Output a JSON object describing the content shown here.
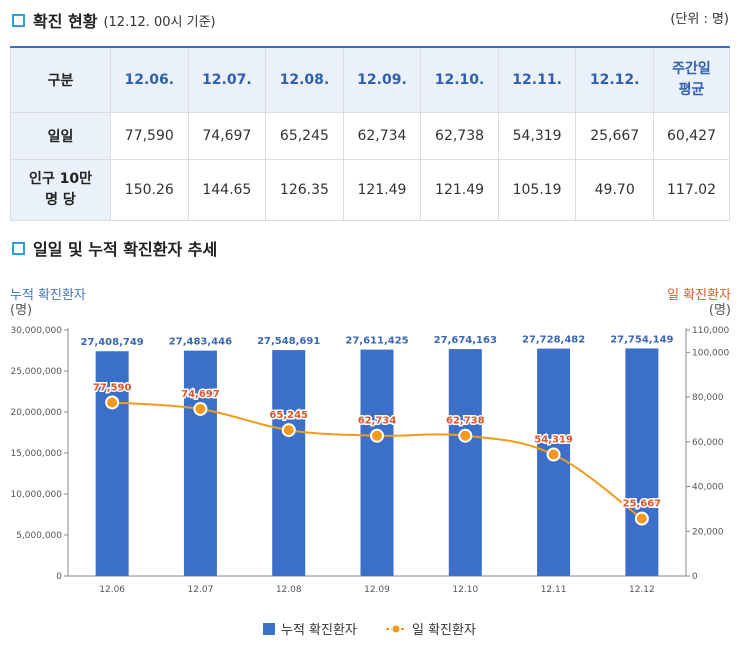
{
  "section1": {
    "title": "확진 현황",
    "subtitle": "(12.12. 00시 기준)",
    "unit": "(단위 : 명)"
  },
  "table": {
    "corner": "구분",
    "dates": [
      "12.06.",
      "12.07.",
      "12.08.",
      "12.09.",
      "12.10.",
      "12.11.",
      "12.12."
    ],
    "avg_label_1": "주간일",
    "avg_label_2": "평균",
    "rows": [
      {
        "label": "일일",
        "values": [
          "77,590",
          "74,697",
          "65,245",
          "62,734",
          "62,738",
          "54,319",
          "25,667"
        ],
        "avg": "60,427"
      },
      {
        "label_1": "인구 10만",
        "label_2": "명 당",
        "values": [
          "150.26",
          "144.65",
          "126.35",
          "121.49",
          "121.49",
          "105.19",
          "49.70"
        ],
        "avg": "117.02"
      }
    ]
  },
  "section2": {
    "title": "일일 및 누적 확진환자 추세"
  },
  "axes": {
    "left_title": "누적 확진환자",
    "left_unit": "(명)",
    "right_title": "일 확진환자",
    "right_unit": "(명)"
  },
  "colors": {
    "bar": "#3b6fc8",
    "line": "#f39a1e",
    "dot_fill": "#f39a1e",
    "bar_label": "#3a67b3",
    "line_label": "#e0552a",
    "header_accent": "#3a6cc0"
  },
  "chart_data": {
    "type": "bar+line",
    "categories": [
      "12.06",
      "12.07",
      "12.08",
      "12.09",
      "12.10",
      "12.11",
      "12.12"
    ],
    "series": [
      {
        "name": "누적 확진환자",
        "type": "bar",
        "axis": "left",
        "values": [
          27408749,
          27483446,
          27548691,
          27611425,
          27674163,
          27728482,
          27754149
        ],
        "labels": [
          "27,408,749",
          "27,483,446",
          "27,548,691",
          "27,611,425",
          "27,674,163",
          "27,728,482",
          "27,754,149"
        ]
      },
      {
        "name": "일 확진환자",
        "type": "line",
        "axis": "right",
        "values": [
          77590,
          74697,
          65245,
          62734,
          62738,
          54319,
          25667
        ],
        "labels": [
          "77,590",
          "74,697",
          "65,245",
          "62,734",
          "62,738",
          "54,319",
          "25,667"
        ]
      }
    ],
    "left_axis": {
      "min": 0,
      "max": 30000000,
      "ticks": [
        0,
        5000000,
        10000000,
        15000000,
        20000000,
        25000000,
        30000000
      ],
      "tick_labels": [
        "0",
        "5,000,000",
        "10,000,000",
        "15,000,000",
        "20,000,000",
        "25,000,000",
        "30,000,000"
      ]
    },
    "right_axis": {
      "min": 0,
      "max": 110000,
      "ticks": [
        0,
        20000,
        40000,
        60000,
        80000,
        100000,
        110000
      ],
      "tick_labels": [
        "0",
        "20,000",
        "40,000",
        "60,000",
        "80,000",
        "100,000",
        "110,000"
      ]
    },
    "legend": [
      "누적 확진환자",
      "일 확진환자"
    ],
    "legend_position": "bottom-center"
  }
}
